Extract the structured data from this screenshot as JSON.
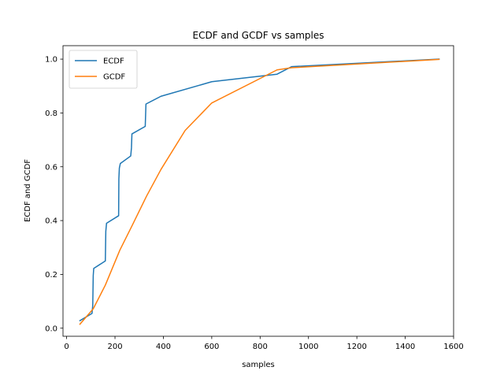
{
  "chart_data": {
    "type": "line",
    "title": "ECDF and GCDF vs samples",
    "xlabel": "samples",
    "ylabel": "ECDF and GCDF",
    "xlim": [
      -15,
      1600
    ],
    "ylim": [
      -0.03,
      1.05
    ],
    "xticks": [
      0,
      200,
      400,
      600,
      800,
      1000,
      1200,
      1400,
      1600
    ],
    "yticks": [
      0.0,
      0.2,
      0.4,
      0.6,
      0.8,
      1.0
    ],
    "xtick_labels": [
      "0",
      "200",
      "400",
      "600",
      "800",
      "1000",
      "1200",
      "1400",
      "1600"
    ],
    "ytick_labels": [
      "0.0",
      "0.2",
      "0.4",
      "0.6",
      "0.8",
      "1.0"
    ],
    "grid": false,
    "legend_position": "top-left",
    "series": [
      {
        "name": "ECDF",
        "color": "#1f77b4",
        "x": [
          55,
          105,
          108,
          110,
          112,
          160,
          162,
          165,
          215,
          216,
          218,
          222,
          265,
          268,
          270,
          325,
          328,
          390,
          600,
          870,
          930,
          1540
        ],
        "y": [
          0.028,
          0.055,
          0.085,
          0.195,
          0.222,
          0.25,
          0.36,
          0.39,
          0.418,
          0.555,
          0.595,
          0.612,
          0.64,
          0.67,
          0.722,
          0.75,
          0.833,
          0.862,
          0.916,
          0.944,
          0.972,
          1.0
        ]
      },
      {
        "name": "GCDF",
        "color": "#ff7f0e",
        "x": [
          55,
          110,
          160,
          220,
          270,
          330,
          390,
          490,
          600,
          870,
          930,
          1540
        ],
        "y": [
          0.015,
          0.072,
          0.16,
          0.29,
          0.38,
          0.49,
          0.59,
          0.735,
          0.837,
          0.96,
          0.968,
          0.999
        ]
      }
    ]
  }
}
